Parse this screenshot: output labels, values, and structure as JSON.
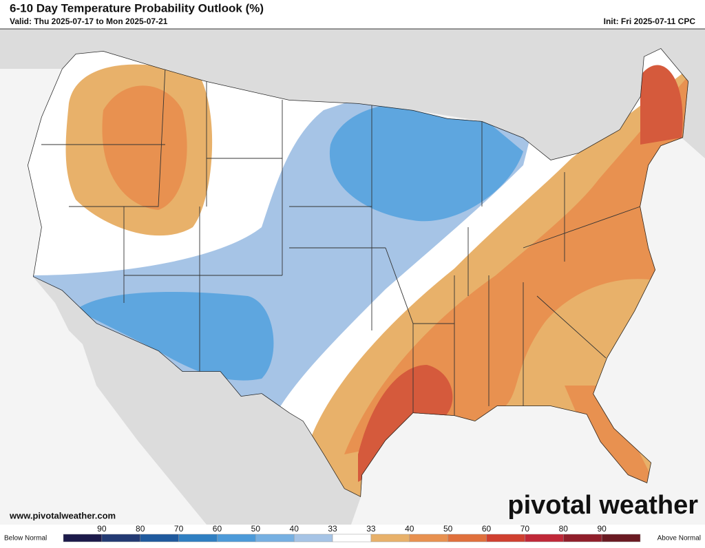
{
  "header": {
    "title": "6-10 Day Temperature Probability Outlook (%)",
    "valid": "Valid: Thu 2025-07-17 to Mon 2025-07-21",
    "init": "Init: Fri 2025-07-11 CPC"
  },
  "website": "www.pivotalweather.com",
  "logo": "pivotal weather",
  "legend": {
    "below_label": "Below Normal",
    "above_label": "Above Normal",
    "ticks": [
      "90",
      "80",
      "70",
      "60",
      "50",
      "40",
      "33",
      "33",
      "40",
      "50",
      "60",
      "70",
      "80",
      "90"
    ],
    "colors": [
      "#1c1a4a",
      "#233a73",
      "#1f5a9e",
      "#2f7fc2",
      "#4c9ad9",
      "#76b0e2",
      "#a6c4e6",
      "#ffffff",
      "#e8b16a",
      "#e89150",
      "#e0703c",
      "#d04030",
      "#c02838",
      "#901e2a",
      "#6a1a22"
    ]
  }
}
